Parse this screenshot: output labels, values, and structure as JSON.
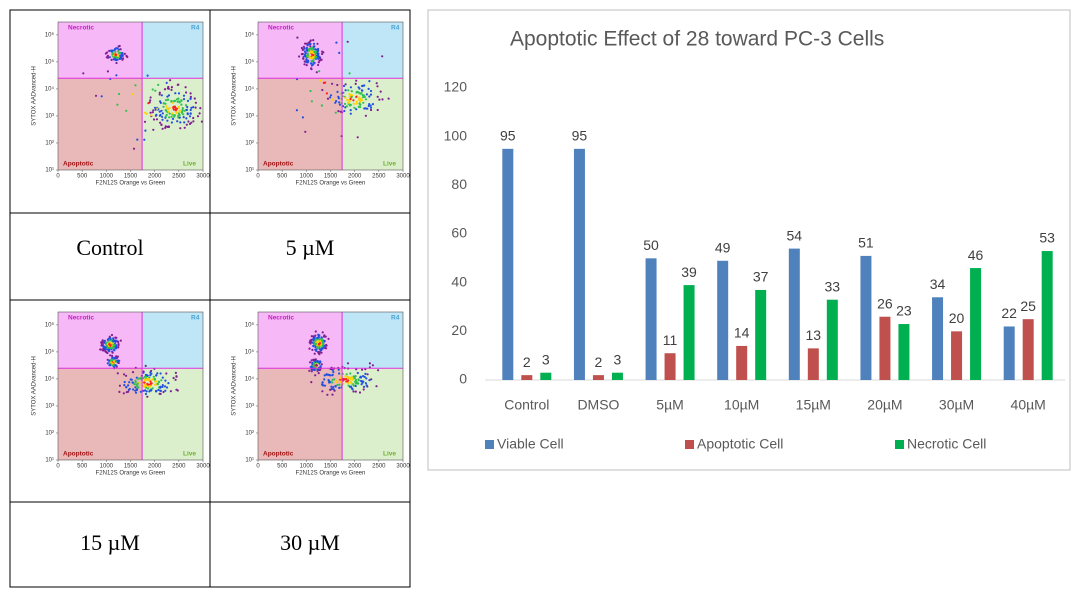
{
  "chart_data": {
    "type": "bar",
    "title": "Apoptotic Effect of 28 toward PC-3 Cells",
    "categories": [
      "Control",
      "DMSO",
      "5µM",
      "10µM",
      "15µM",
      "20µM",
      "30µM",
      "40µM"
    ],
    "series": [
      {
        "name": "Viable Cell",
        "color": "#4f81bd",
        "values": [
          95,
          95,
          50,
          49,
          54,
          51,
          34,
          22
        ]
      },
      {
        "name": "Apoptotic Cell",
        "color": "#c0504d",
        "values": [
          2,
          2,
          11,
          14,
          13,
          26,
          20,
          25
        ]
      },
      {
        "name": "Necrotic Cell",
        "color": "#00b050",
        "values": [
          3,
          3,
          39,
          37,
          33,
          23,
          46,
          53
        ]
      }
    ],
    "ylim": [
      0,
      120
    ],
    "yticks": [
      0,
      20,
      40,
      60,
      80,
      100,
      120
    ],
    "grid": false,
    "legend": "bottom"
  },
  "flow_plot": {
    "x_label": "F2N12S Orange vs Green",
    "y_label": "SYTOX AADvanced-H",
    "xlim": [
      0,
      3000
    ],
    "xticks": [
      0,
      500,
      1000,
      1500,
      2000,
      2500,
      3000
    ],
    "ylim": [
      10,
      3000000
    ],
    "log_y": true,
    "yticks": [
      {
        "value": 10,
        "label": "10¹"
      },
      {
        "value": 100,
        "label": "10²"
      },
      {
        "value": 1000,
        "label": "10³"
      },
      {
        "value": 10000,
        "label": "10⁴"
      },
      {
        "value": 100000,
        "label": "10⁵"
      },
      {
        "value": 1000000,
        "label": "10⁶"
      }
    ],
    "quadrants": {
      "top_left": "Necrotic",
      "top_right": "R4",
      "bottom_left": "Apoptotic",
      "bottom_right": "Live"
    }
  },
  "table": {
    "labels": [
      "Control",
      "5 µM",
      "15 µM",
      "30 µM"
    ]
  }
}
